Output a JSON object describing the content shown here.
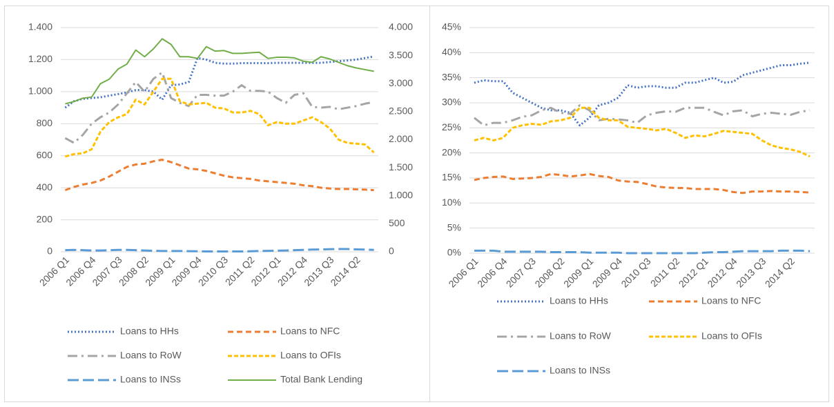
{
  "chart_data": [
    {
      "type": "line",
      "categories": [
        "2006 Q1",
        null,
        null,
        "2006 Q4",
        null,
        null,
        "2007 Q3",
        null,
        null,
        "2008 Q2",
        null,
        null,
        "2009 Q1",
        null,
        null,
        "2009 Q4",
        null,
        null,
        "2010 Q3",
        null,
        null,
        "2011 Q2",
        null,
        null,
        "2012 Q1",
        null,
        null,
        "2012 Q4",
        null,
        null,
        "2013 Q3",
        null,
        null,
        "2014 Q2",
        null,
        null
      ],
      "ylim": [
        0,
        1400
      ],
      "yticks": [
        0,
        200,
        400,
        600,
        800,
        {
          "value": 1000,
          "label": "1.000"
        },
        {
          "value": 1200,
          "label": "1.200"
        },
        {
          "value": 1400,
          "label": "1.400"
        }
      ],
      "y2lim": [
        0,
        4000
      ],
      "y2ticks": [
        0,
        500,
        {
          "value": 1000,
          "label": "1.000"
        },
        {
          "value": 1500,
          "label": "1.500"
        },
        {
          "value": 2000,
          "label": "2.000"
        },
        {
          "value": 2500,
          "label": "2.500"
        },
        {
          "value": 3000,
          "label": "3.000"
        },
        {
          "value": 3500,
          "label": "3.500"
        },
        {
          "value": 4000,
          "label": "4.000"
        }
      ],
      "grid": true,
      "legend": "bottom",
      "series": [
        {
          "name": "Loans to HHs",
          "color": "#4472c4",
          "dash": "dot",
          "values": [
            900,
            940,
            955,
            960,
            965,
            975,
            985,
            995,
            1010,
            1010,
            1000,
            950,
            1040,
            1045,
            1060,
            1210,
            1200,
            1180,
            1175,
            1175,
            1178,
            1178,
            1178,
            1178,
            1180,
            1180,
            1180,
            1180,
            1180,
            1180,
            1185,
            1190,
            1195,
            1200,
            1210,
            1220
          ]
        },
        {
          "name": "Loans to NFC",
          "color": "#ed7d31",
          "dash": "dash",
          "values": [
            385,
            405,
            420,
            430,
            445,
            470,
            500,
            530,
            545,
            550,
            565,
            575,
            560,
            540,
            520,
            515,
            505,
            490,
            475,
            465,
            460,
            455,
            445,
            440,
            435,
            430,
            425,
            415,
            410,
            400,
            395,
            392,
            392,
            390,
            388,
            385
          ]
        },
        {
          "name": "Loans to RoW",
          "color": "#a5a5a5",
          "dash": "longdashdot",
          "values": [
            710,
            680,
            730,
            800,
            840,
            870,
            920,
            990,
            1060,
            1000,
            1080,
            1120,
            960,
            930,
            910,
            980,
            980,
            975,
            975,
            1000,
            1040,
            1005,
            1005,
            1000,
            960,
            930,
            980,
            990,
            905,
            900,
            905,
            890,
            900,
            910,
            925,
            935
          ]
        },
        {
          "name": "Loans to OFIs",
          "color": "#ffc000",
          "dash": "sysdash",
          "values": [
            595,
            610,
            615,
            640,
            750,
            810,
            840,
            860,
            950,
            920,
            1000,
            1080,
            1080,
            940,
            920,
            925,
            930,
            900,
            895,
            870,
            870,
            880,
            860,
            790,
            810,
            800,
            800,
            820,
            840,
            810,
            770,
            700,
            680,
            675,
            670,
            620
          ]
        },
        {
          "name": "Loans to INSs",
          "color": "#5b9bd5",
          "dash": "longdash",
          "values": [
            10,
            12,
            10,
            8,
            8,
            10,
            12,
            12,
            10,
            8,
            6,
            5,
            5,
            5,
            4,
            3,
            2,
            2,
            2,
            2,
            2,
            3,
            5,
            6,
            7,
            8,
            10,
            12,
            14,
            15,
            16,
            17,
            17,
            15,
            14,
            12
          ]
        },
        {
          "name": "Total Bank Lending",
          "color": "#70ad47",
          "dash": "solid",
          "axis": "y2",
          "values": [
            2640,
            2680,
            2740,
            2760,
            3000,
            3080,
            3260,
            3350,
            3600,
            3480,
            3620,
            3800,
            3700,
            3480,
            3480,
            3450,
            3660,
            3580,
            3590,
            3540,
            3540,
            3550,
            3560,
            3450,
            3470,
            3470,
            3460,
            3400,
            3380,
            3480,
            3440,
            3380,
            3320,
            3280,
            3250,
            3220
          ]
        }
      ]
    },
    {
      "type": "line",
      "categories": [
        "2006 Q1",
        null,
        null,
        "2006 Q4",
        null,
        null,
        "2007 Q3",
        null,
        null,
        "2008 Q2",
        null,
        null,
        "2009 Q1",
        null,
        null,
        "2009 Q4",
        null,
        null,
        "2010 Q3",
        null,
        null,
        "2011 Q2",
        null,
        null,
        "2012 Q1",
        null,
        null,
        "2012 Q4",
        null,
        null,
        "2013 Q3",
        null,
        null,
        "2014 Q2",
        null,
        null
      ],
      "ylim": [
        0,
        45
      ],
      "yticks": [
        {
          "value": 0,
          "label": "0%"
        },
        {
          "value": 5,
          "label": "5%"
        },
        {
          "value": 10,
          "label": "10%"
        },
        {
          "value": 15,
          "label": "15%"
        },
        {
          "value": 20,
          "label": "20%"
        },
        {
          "value": 25,
          "label": "25%"
        },
        {
          "value": 30,
          "label": "30%"
        },
        {
          "value": 35,
          "label": "35%"
        },
        {
          "value": 40,
          "label": "40%"
        },
        {
          "value": 45,
          "label": "45%"
        }
      ],
      "grid": true,
      "legend": "bottom",
      "series": [
        {
          "name": "Loans to HHs",
          "color": "#4472c4",
          "dash": "dot",
          "values": [
            34,
            34.5,
            34.3,
            34.3,
            32,
            31,
            30,
            29,
            28.5,
            28.5,
            28,
            25.5,
            27,
            29.5,
            30,
            31,
            33.5,
            33,
            33.3,
            33.3,
            33,
            33,
            34,
            34,
            34.5,
            35,
            34,
            34.2,
            35.5,
            36,
            36.5,
            37,
            37.5,
            37.5,
            37.8,
            38
          ]
        },
        {
          "name": "Loans to NFC",
          "color": "#ed7d31",
          "dash": "dash",
          "values": [
            14.6,
            15,
            15.2,
            15.3,
            14.8,
            14.9,
            15,
            15.2,
            15.8,
            15.6,
            15.3,
            15.5,
            15.8,
            15.4,
            15.2,
            14.5,
            14.3,
            14.2,
            13.8,
            13.3,
            13.1,
            13,
            13,
            12.8,
            12.8,
            12.8,
            12.6,
            12.2,
            12,
            12.3,
            12.3,
            12.4,
            12.3,
            12.3,
            12.2,
            12.1
          ]
        },
        {
          "name": "Loans to RoW",
          "color": "#a5a5a5",
          "dash": "longdashdot",
          "values": [
            27,
            25.5,
            26,
            26,
            26.5,
            27.2,
            27.5,
            28.5,
            29,
            28,
            27.8,
            29.5,
            28.5,
            26.5,
            26.8,
            26.7,
            26.5,
            26,
            27.5,
            28,
            28.3,
            28.2,
            29,
            29,
            29,
            28.2,
            27.5,
            28.3,
            28.5,
            27.3,
            27.8,
            28,
            27.8,
            27.6,
            28.2,
            28.5
          ]
        },
        {
          "name": "Loans to OFIs",
          "color": "#ffc000",
          "dash": "sysdash",
          "values": [
            22.5,
            23,
            22.5,
            23,
            25,
            25.5,
            25.8,
            25.6,
            26.3,
            26.5,
            27,
            29,
            29,
            27,
            26.5,
            26.5,
            25.2,
            25,
            24.8,
            24.5,
            24.8,
            24,
            23,
            23.5,
            23.3,
            23.8,
            24.4,
            24.2,
            24,
            23.8,
            22.5,
            21.5,
            21,
            20.7,
            20.2,
            19.3
          ]
        },
        {
          "name": "Loans to INSs",
          "color": "#5b9bd5",
          "dash": "longdash",
          "values": [
            0.5,
            0.5,
            0.5,
            0.3,
            0.3,
            0.3,
            0.3,
            0.3,
            0.2,
            0.2,
            0.2,
            0.2,
            0.1,
            0.1,
            0.1,
            0.1,
            0,
            0,
            0,
            0,
            0,
            0,
            0,
            0,
            0.1,
            0.2,
            0.2,
            0.3,
            0.4,
            0.4,
            0.4,
            0.4,
            0.5,
            0.5,
            0.5,
            0.4
          ]
        }
      ]
    }
  ]
}
